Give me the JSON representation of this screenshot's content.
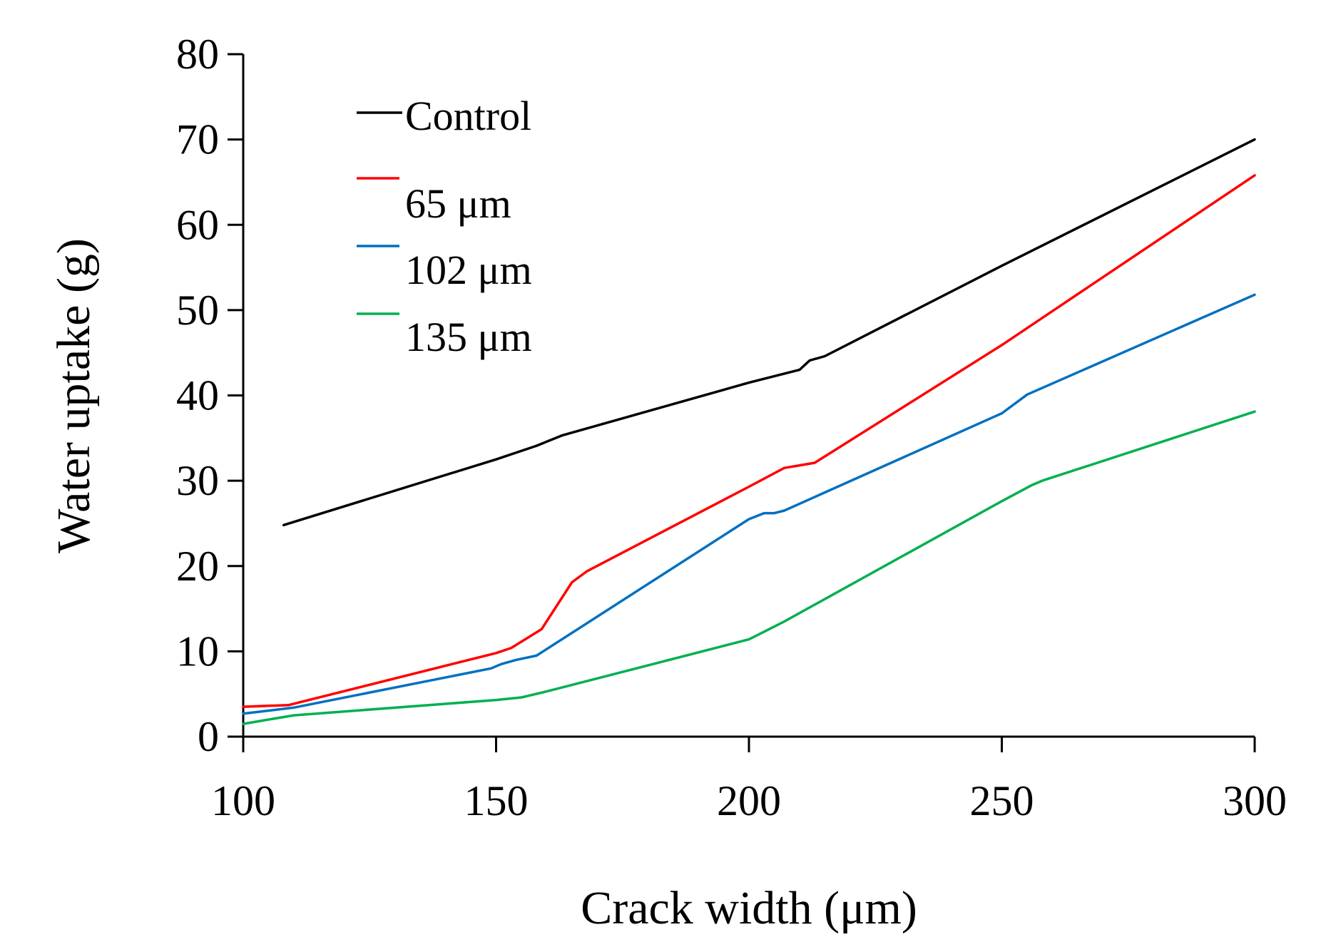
{
  "chart_data": {
    "type": "line",
    "title": "",
    "xlabel": "Crack width (μm)",
    "ylabel": "Water uptake (g)",
    "xlim": [
      100,
      300
    ],
    "ylim": [
      0,
      80
    ],
    "xticks": [
      100,
      150,
      200,
      250,
      300
    ],
    "yticks": [
      0,
      10,
      20,
      30,
      40,
      50,
      60,
      70,
      80
    ],
    "grid": false,
    "legend_position": "top-left",
    "series": [
      {
        "name": "Control",
        "color": "#000000",
        "x": [
          108,
          150,
          158,
          163,
          200,
          210,
          212,
          215,
          250,
          300
        ],
        "y": [
          24.8,
          32.5,
          34.1,
          35.3,
          41.5,
          43.0,
          44.1,
          44.6,
          55.2,
          70.0
        ]
      },
      {
        "name": "65 μm",
        "color": "#ff0000",
        "x": [
          100,
          109,
          150,
          153,
          159,
          165,
          168,
          200,
          207,
          210,
          213,
          250,
          300
        ],
        "y": [
          3.5,
          3.7,
          9.8,
          10.4,
          12.6,
          18.1,
          19.4,
          29.3,
          31.5,
          31.8,
          32.1,
          45.9,
          65.8
        ]
      },
      {
        "name": "102 μm",
        "color": "#0070c0",
        "x": [
          100,
          110,
          149,
          151,
          154,
          158,
          200,
          203,
          205,
          207,
          250,
          255,
          300
        ],
        "y": [
          2.7,
          3.4,
          8.0,
          8.5,
          9.0,
          9.5,
          25.5,
          26.2,
          26.2,
          26.5,
          37.9,
          40.1,
          51.8
        ]
      },
      {
        "name": "135 μm",
        "color": "#00b050",
        "x": [
          100,
          110,
          150,
          155,
          160,
          200,
          205,
          207,
          250,
          256,
          258,
          300
        ],
        "y": [
          1.5,
          2.5,
          4.3,
          4.6,
          5.3,
          11.4,
          12.9,
          13.5,
          27.6,
          29.5,
          30.0,
          38.1
        ]
      }
    ]
  }
}
